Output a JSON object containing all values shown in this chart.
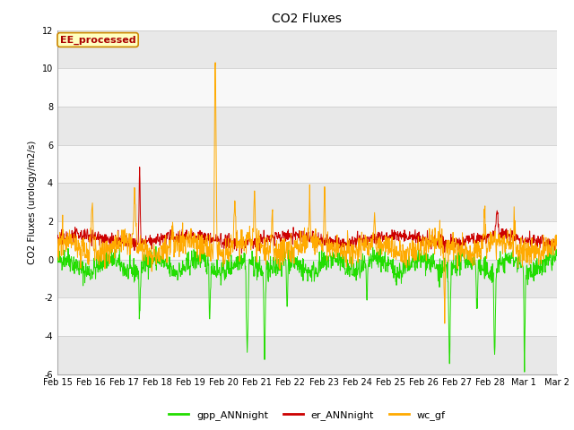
{
  "title": "CO2 Fluxes",
  "ylabel": "CO2 Fluxes (urology/m2/s)",
  "ylim": [
    -6,
    12
  ],
  "yticks": [
    -6,
    -4,
    -2,
    0,
    2,
    4,
    6,
    8,
    10,
    12
  ],
  "date_labels": [
    "Feb 15",
    "Feb 16",
    "Feb 17",
    "Feb 18",
    "Feb 19",
    "Feb 20",
    "Feb 21",
    "Feb 22",
    "Feb 23",
    "Feb 24",
    "Feb 25",
    "Feb 26",
    "Feb 27",
    "Feb 28",
    "Mar 1",
    "Mar 2"
  ],
  "n_points": 1440,
  "colors": {
    "gpp": "#22dd00",
    "er": "#cc0000",
    "wc": "#ffaa00",
    "background": "#ffffff",
    "band_gray": "#e8e8e8",
    "band_white": "#f8f8f8"
  },
  "legend_label": "EE_processed",
  "legend_entries": [
    "gpp_ANNnight",
    "er_ANNnight",
    "wc_gf"
  ],
  "title_fontsize": 10,
  "label_fontsize": 7.5,
  "tick_fontsize": 7,
  "legend_fontsize": 8,
  "seed": 42
}
